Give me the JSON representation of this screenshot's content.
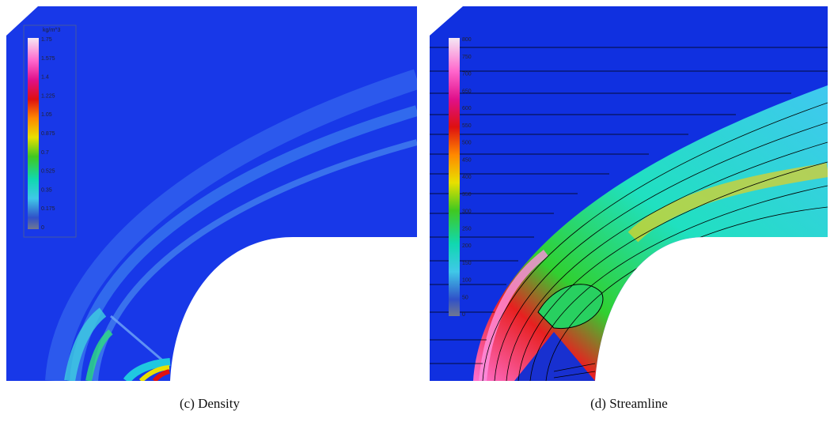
{
  "figure": {
    "panels": [
      {
        "caption": "(c) Density",
        "unit": "kg/m^3",
        "colorbar_labels": [
          "1.75",
          "1.575",
          "1.4",
          "1.225",
          "1.05",
          "0.875",
          "0.7",
          "0.525",
          "0.35",
          "0.175",
          "0"
        ]
      },
      {
        "caption": "(d) Streamline",
        "unit": "",
        "colorbar_labels": [
          "800",
          "750",
          "700",
          "650",
          "600",
          "550",
          "500",
          "450",
          "400",
          "350",
          "300",
          "250",
          "200",
          "150",
          "100",
          "50",
          "0"
        ]
      }
    ]
  }
}
